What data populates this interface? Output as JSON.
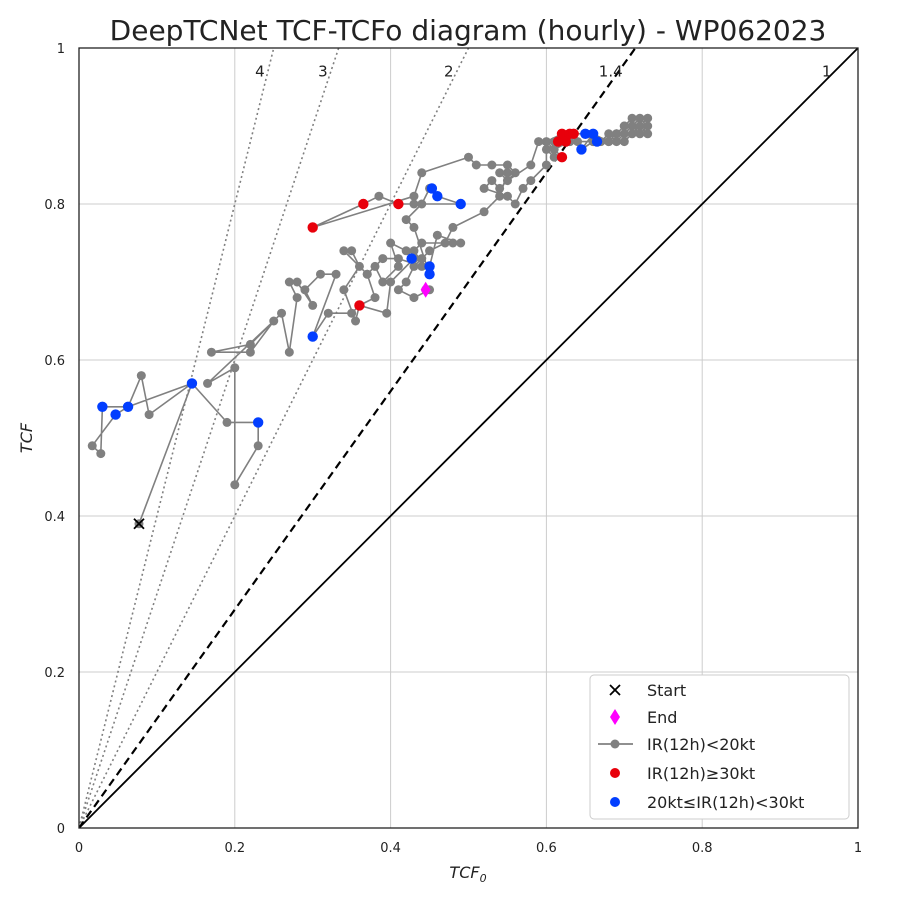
{
  "chart_data": {
    "type": "scatter",
    "title": "DeepTCNet TCF-TCFo diagram (hourly) - WP062023",
    "xlabel": "TCF",
    "xlabel_sub": "0",
    "ylabel": "TCF",
    "xlim": [
      0,
      1
    ],
    "ylim": [
      0,
      1
    ],
    "xticks": [
      0,
      0.2,
      0.4,
      0.6,
      0.8,
      1
    ],
    "yticks": [
      0,
      0.2,
      0.4,
      0.6,
      0.8,
      1
    ],
    "xtick_labels": [
      "0",
      "0.2",
      "0.4",
      "0.6",
      "0.8",
      "1"
    ],
    "ytick_labels": [
      "0",
      "0.2",
      "0.4",
      "0.6",
      "0.8",
      "1"
    ],
    "grid": true,
    "legend_position": "bottom-right",
    "reference_lines": [
      {
        "label": "4",
        "slope": 4,
        "style": "dotted"
      },
      {
        "label": "3",
        "slope": 3,
        "style": "dotted"
      },
      {
        "label": "2",
        "slope": 2,
        "style": "dotted"
      },
      {
        "label": "1.4",
        "slope": 1.4,
        "style": "dashed"
      },
      {
        "label": "1",
        "slope": 1,
        "style": "solid"
      }
    ],
    "legend": [
      {
        "key": "start",
        "label": "Start"
      },
      {
        "key": "end",
        "label": "End"
      },
      {
        "key": "low",
        "label": "IR(12h)<20kt"
      },
      {
        "key": "high",
        "label": "IR(12h)≥30kt"
      },
      {
        "key": "mid",
        "label": "20kt≤IR(12h)<30kt"
      }
    ],
    "colors": {
      "low": "#808080",
      "high": "#e8000b",
      "mid": "#023eff",
      "end": "#ff00ff",
      "start": "#000000"
    },
    "start": [
      0.077,
      0.39
    ],
    "end": [
      0.445,
      0.69
    ],
    "track": [
      [
        0.077,
        0.39
      ],
      [
        0.145,
        0.57
      ],
      [
        0.09,
        0.53
      ],
      [
        0.08,
        0.58
      ],
      [
        0.063,
        0.54
      ],
      [
        0.03,
        0.54
      ],
      [
        0.028,
        0.48
      ],
      [
        0.017,
        0.49
      ],
      [
        0.047,
        0.53
      ],
      [
        0.063,
        0.54
      ],
      [
        0.145,
        0.57
      ],
      [
        0.19,
        0.52
      ],
      [
        0.23,
        0.52
      ],
      [
        0.23,
        0.49
      ],
      [
        0.2,
        0.44
      ],
      [
        0.2,
        0.59
      ],
      [
        0.165,
        0.57
      ],
      [
        0.25,
        0.65
      ],
      [
        0.22,
        0.61
      ],
      [
        0.17,
        0.61
      ],
      [
        0.22,
        0.62
      ],
      [
        0.26,
        0.66
      ],
      [
        0.27,
        0.61
      ],
      [
        0.28,
        0.68
      ],
      [
        0.27,
        0.7
      ],
      [
        0.28,
        0.7
      ],
      [
        0.3,
        0.67
      ],
      [
        0.29,
        0.69
      ],
      [
        0.31,
        0.71
      ],
      [
        0.33,
        0.71
      ],
      [
        0.3,
        0.63
      ],
      [
        0.32,
        0.66
      ],
      [
        0.35,
        0.66
      ],
      [
        0.36,
        0.67
      ],
      [
        0.355,
        0.65
      ],
      [
        0.34,
        0.69
      ],
      [
        0.36,
        0.72
      ],
      [
        0.35,
        0.74
      ],
      [
        0.34,
        0.74
      ],
      [
        0.37,
        0.71
      ],
      [
        0.38,
        0.72
      ],
      [
        0.39,
        0.7
      ],
      [
        0.41,
        0.72
      ],
      [
        0.4,
        0.75
      ],
      [
        0.42,
        0.74
      ],
      [
        0.43,
        0.73
      ],
      [
        0.4,
        0.7
      ],
      [
        0.395,
        0.66
      ],
      [
        0.36,
        0.67
      ],
      [
        0.38,
        0.68
      ],
      [
        0.37,
        0.71
      ],
      [
        0.39,
        0.73
      ],
      [
        0.41,
        0.73
      ],
      [
        0.44,
        0.72
      ],
      [
        0.45,
        0.72
      ],
      [
        0.46,
        0.76
      ],
      [
        0.49,
        0.75
      ],
      [
        0.48,
        0.75
      ],
      [
        0.44,
        0.75
      ],
      [
        0.43,
        0.74
      ],
      [
        0.45,
        0.71
      ],
      [
        0.43,
        0.77
      ],
      [
        0.42,
        0.78
      ],
      [
        0.44,
        0.8
      ],
      [
        0.45,
        0.82
      ],
      [
        0.46,
        0.81
      ],
      [
        0.49,
        0.8
      ],
      [
        0.43,
        0.8
      ],
      [
        0.41,
        0.8
      ],
      [
        0.385,
        0.81
      ],
      [
        0.365,
        0.8
      ],
      [
        0.3,
        0.77
      ],
      [
        0.43,
        0.81
      ],
      [
        0.44,
        0.84
      ],
      [
        0.5,
        0.86
      ],
      [
        0.51,
        0.85
      ],
      [
        0.53,
        0.85
      ],
      [
        0.55,
        0.85
      ],
      [
        0.56,
        0.84
      ],
      [
        0.54,
        0.82
      ],
      [
        0.53,
        0.83
      ],
      [
        0.52,
        0.82
      ],
      [
        0.55,
        0.81
      ],
      [
        0.56,
        0.8
      ],
      [
        0.57,
        0.82
      ],
      [
        0.58,
        0.83
      ],
      [
        0.6,
        0.85
      ],
      [
        0.6,
        0.87
      ],
      [
        0.61,
        0.86
      ],
      [
        0.62,
        0.86
      ],
      [
        0.6,
        0.88
      ],
      [
        0.62,
        0.89
      ],
      [
        0.61,
        0.88
      ],
      [
        0.63,
        0.88
      ],
      [
        0.63,
        0.89
      ],
      [
        0.65,
        0.89
      ],
      [
        0.66,
        0.88
      ],
      [
        0.645,
        0.87
      ],
      [
        0.66,
        0.89
      ],
      [
        0.68,
        0.88
      ],
      [
        0.69,
        0.89
      ],
      [
        0.7,
        0.9
      ],
      [
        0.71,
        0.9
      ],
      [
        0.72,
        0.91
      ],
      [
        0.73,
        0.9
      ],
      [
        0.72,
        0.89
      ],
      [
        0.71,
        0.9
      ],
      [
        0.7,
        0.89
      ],
      [
        0.69,
        0.88
      ],
      [
        0.68,
        0.89
      ],
      [
        0.67,
        0.88
      ],
      [
        0.69,
        0.89
      ],
      [
        0.7,
        0.9
      ],
      [
        0.71,
        0.91
      ],
      [
        0.73,
        0.91
      ],
      [
        0.72,
        0.9
      ],
      [
        0.73,
        0.89
      ],
      [
        0.72,
        0.9
      ],
      [
        0.71,
        0.89
      ],
      [
        0.7,
        0.88
      ],
      [
        0.68,
        0.88
      ],
      [
        0.66,
        0.88
      ],
      [
        0.64,
        0.88
      ],
      [
        0.63,
        0.88
      ],
      [
        0.61,
        0.87
      ],
      [
        0.59,
        0.88
      ],
      [
        0.58,
        0.85
      ],
      [
        0.55,
        0.83
      ],
      [
        0.54,
        0.84
      ],
      [
        0.55,
        0.84
      ],
      [
        0.54,
        0.81
      ],
      [
        0.52,
        0.79
      ],
      [
        0.48,
        0.77
      ],
      [
        0.47,
        0.75
      ],
      [
        0.45,
        0.74
      ],
      [
        0.44,
        0.73
      ],
      [
        0.43,
        0.72
      ],
      [
        0.42,
        0.7
      ],
      [
        0.41,
        0.69
      ],
      [
        0.43,
        0.68
      ],
      [
        0.45,
        0.69
      ],
      [
        0.445,
        0.69
      ]
    ],
    "high_points": [
      [
        0.3,
        0.77
      ],
      [
        0.365,
        0.8
      ],
      [
        0.41,
        0.8
      ],
      [
        0.36,
        0.67
      ],
      [
        0.615,
        0.88
      ],
      [
        0.62,
        0.89
      ],
      [
        0.625,
        0.88
      ],
      [
        0.63,
        0.89
      ],
      [
        0.62,
        0.86
      ],
      [
        0.635,
        0.89
      ]
    ],
    "mid_points": [
      [
        0.03,
        0.54
      ],
      [
        0.047,
        0.53
      ],
      [
        0.063,
        0.54
      ],
      [
        0.145,
        0.57
      ],
      [
        0.23,
        0.52
      ],
      [
        0.3,
        0.63
      ],
      [
        0.427,
        0.73
      ],
      [
        0.45,
        0.72
      ],
      [
        0.45,
        0.71
      ],
      [
        0.453,
        0.82
      ],
      [
        0.46,
        0.81
      ],
      [
        0.49,
        0.8
      ],
      [
        0.645,
        0.87
      ],
      [
        0.65,
        0.89
      ],
      [
        0.66,
        0.89
      ],
      [
        0.665,
        0.88
      ]
    ]
  }
}
